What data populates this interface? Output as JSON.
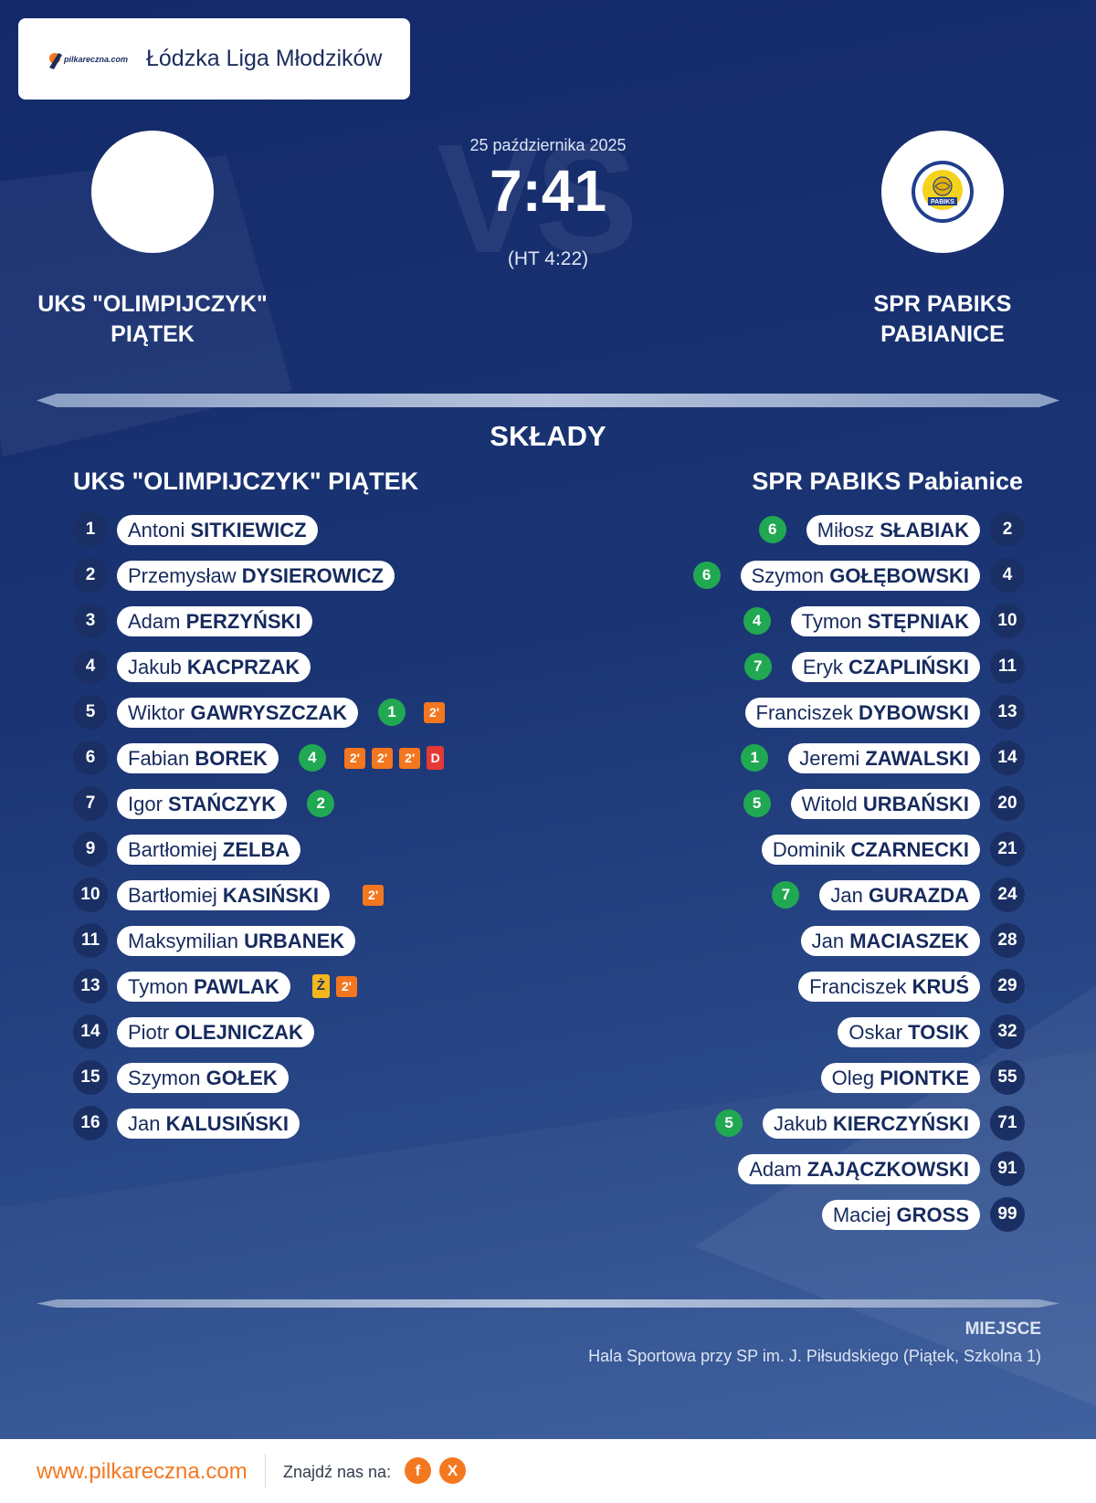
{
  "header": {
    "league": "Łódzka Liga Młodzików",
    "brand_logo_icon": "pilkareczna-logo",
    "brand_logo_text": "pilkareczna.com"
  },
  "match": {
    "date": "25 października 2025",
    "score": "7:41",
    "halftime": "(HT 4:22)",
    "vs_watermark": "VS"
  },
  "home": {
    "name": "UKS \"OLIMPIJCZYK\"\nPIĄTEK",
    "lineup_title": "UKS \"OLIMPIJCZYK\" PIĄTEK",
    "players": [
      {
        "number": "1",
        "first": "Antoni",
        "last": "SITKIEWICZ",
        "goals": null,
        "cards": []
      },
      {
        "number": "2",
        "first": "Przemysław",
        "last": "DYSIEROWICZ",
        "goals": null,
        "cards": []
      },
      {
        "number": "3",
        "first": "Adam",
        "last": "PERZYŃSKI",
        "goals": null,
        "cards": []
      },
      {
        "number": "4",
        "first": "Jakub",
        "last": "KACPRZAK",
        "goals": null,
        "cards": []
      },
      {
        "number": "5",
        "first": "Wiktor",
        "last": "GAWRYSZCZAK",
        "goals": "1",
        "cards": [
          "2'"
        ]
      },
      {
        "number": "6",
        "first": "Fabian",
        "last": "BOREK",
        "goals": "4",
        "cards": [
          "2'",
          "2'",
          "2'",
          "D"
        ]
      },
      {
        "number": "7",
        "first": "Igor",
        "last": "STAŃCZYK",
        "goals": "2",
        "cards": []
      },
      {
        "number": "9",
        "first": "Bartłomiej",
        "last": "ZELBA",
        "goals": null,
        "cards": []
      },
      {
        "number": "10",
        "first": "Bartłomiej",
        "last": "KASIŃSKI",
        "goals": null,
        "cards": [
          "2'"
        ]
      },
      {
        "number": "11",
        "first": "Maksymilian",
        "last": "URBANEK",
        "goals": null,
        "cards": []
      },
      {
        "number": "13",
        "first": "Tymon",
        "last": "PAWLAK",
        "goals": null,
        "cards": [
          "Ż",
          "2'"
        ]
      },
      {
        "number": "14",
        "first": "Piotr",
        "last": "OLEJNICZAK",
        "goals": null,
        "cards": []
      },
      {
        "number": "15",
        "first": "Szymon",
        "last": "GOŁEK",
        "goals": null,
        "cards": []
      },
      {
        "number": "16",
        "first": "Jan",
        "last": "KALUSIŃSKI",
        "goals": null,
        "cards": []
      }
    ]
  },
  "away": {
    "name": "SPR PABIKS\nPABIANICE",
    "lineup_title": "SPR PABIKS Pabianice",
    "crest_text": "PABIKS",
    "players": [
      {
        "number": "2",
        "first": "Miłosz",
        "last": "SŁABIAK",
        "goals": "6"
      },
      {
        "number": "4",
        "first": "Szymon",
        "last": "GOŁĘBOWSKI",
        "goals": "6"
      },
      {
        "number": "10",
        "first": "Tymon",
        "last": "STĘPNIAK",
        "goals": "4"
      },
      {
        "number": "11",
        "first": "Eryk",
        "last": "CZAPLIŃSKI",
        "goals": "7"
      },
      {
        "number": "13",
        "first": "Franciszek",
        "last": "DYBOWSKI",
        "goals": null
      },
      {
        "number": "14",
        "first": "Jeremi",
        "last": "ZAWALSKI",
        "goals": "1"
      },
      {
        "number": "20",
        "first": "Witold",
        "last": "URBAŃSKI",
        "goals": "5"
      },
      {
        "number": "21",
        "first": "Dominik",
        "last": "CZARNECKI",
        "goals": null
      },
      {
        "number": "24",
        "first": "Jan",
        "last": "GURAZDA",
        "goals": "7"
      },
      {
        "number": "28",
        "first": "Jan",
        "last": "MACIASZEK",
        "goals": null
      },
      {
        "number": "29",
        "first": "Franciszek",
        "last": "KRUŚ",
        "goals": null
      },
      {
        "number": "32",
        "first": "Oskar",
        "last": "TOSIK",
        "goals": null
      },
      {
        "number": "55",
        "first": "Oleg",
        "last": "PIONTKE",
        "goals": null
      },
      {
        "number": "71",
        "first": "Jakub",
        "last": "KIERCZYŃSKI",
        "goals": "5"
      },
      {
        "number": "91",
        "first": "Adam",
        "last": "ZAJĄCZKOWSKI",
        "goals": null
      },
      {
        "number": "99",
        "first": "Maciej",
        "last": "GROSS",
        "goals": null
      }
    ]
  },
  "section_title": "SKŁADY",
  "venue": {
    "label": "MIEJSCE",
    "value": "Hala Sportowa przy SP im. J. Piłsudskiego (Piątek, Szkolna 1)"
  },
  "footer": {
    "site": "www.pilkareczna.com",
    "find_us": "Znajdź nas na:",
    "social": [
      {
        "icon": "facebook-icon",
        "glyph": "f"
      },
      {
        "icon": "x-icon",
        "glyph": "X"
      }
    ]
  },
  "colors": {
    "goal": "#21a852",
    "suspension": "#f4761f",
    "yellow": "#f4b51d",
    "red": "#e53935",
    "accent": "#f47820"
  }
}
